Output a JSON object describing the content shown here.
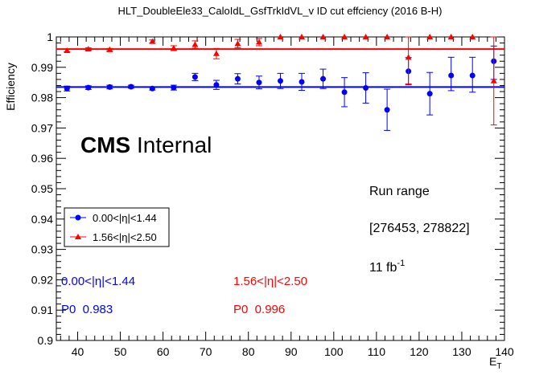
{
  "chart_data": {
    "type": "scatter",
    "title": "HLT_DoubleEle33_CaloIdL_GsfTrkIdVL_v ID cut effciency (2016 B-H)",
    "ylabel": "Efficiency",
    "xlabel": "E",
    "xlabel_sub": "T",
    "xlim": [
      35,
      140
    ],
    "ylim": [
      0.9,
      1.0
    ],
    "x_ticks": [
      "40",
      "50",
      "60",
      "70",
      "80",
      "90",
      "100",
      "110",
      "120",
      "130",
      "140"
    ],
    "y_ticks": [
      "0.9",
      "0.91",
      "0.92",
      "0.93",
      "0.94",
      "0.95",
      "0.96",
      "0.97",
      "0.98",
      "0.99",
      "1"
    ],
    "colors": {
      "blue": "#0000ff",
      "red": "#ff0000"
    },
    "series": [
      {
        "name": "0.00<|η|<1.44",
        "color": "#0000ff",
        "marker": "circle",
        "fit_p0": 0.9835,
        "x": [
          37.5,
          42.5,
          47.5,
          52.5,
          57.5,
          62.5,
          67.5,
          72.5,
          77.5,
          82.5,
          87.5,
          92.5,
          97.5,
          102.5,
          107.5,
          112.5,
          117.5,
          122.5,
          127.5,
          132.5,
          137.5
        ],
        "y": [
          0.983,
          0.9833,
          0.9835,
          0.9836,
          0.983,
          0.9833,
          0.9868,
          0.9842,
          0.9862,
          0.985,
          0.9855,
          0.9852,
          0.9862,
          0.9818,
          0.9832,
          0.976,
          0.9887,
          0.9813,
          0.9873,
          0.9873,
          0.992
        ],
        "err_lo": [
          0.0008,
          0.0006,
          0.0006,
          0.0005,
          0.0005,
          0.0008,
          0.0012,
          0.0015,
          0.0017,
          0.0021,
          0.0025,
          0.0028,
          0.0032,
          0.0048,
          0.005,
          0.0068,
          0.0045,
          0.007,
          0.005,
          0.0055,
          0.006
        ],
        "err_hi": [
          0.0008,
          0.0006,
          0.0006,
          0.0005,
          0.0005,
          0.0008,
          0.0012,
          0.0015,
          0.0017,
          0.0021,
          0.0025,
          0.0028,
          0.0032,
          0.0048,
          0.005,
          0.0068,
          0.0045,
          0.007,
          0.006,
          0.006,
          0.005
        ]
      },
      {
        "name": "1.56<|η|<2.50",
        "color": "#ff0000",
        "marker": "triangle",
        "fit_p0": 0.996,
        "x": [
          37.5,
          42.5,
          47.5,
          57.5,
          62.5,
          67.5,
          72.5,
          77.5,
          82.5,
          87.5,
          92.5,
          97.5,
          102.5,
          107.5,
          112.5,
          117.5,
          122.5,
          127.5,
          132.5,
          137.5
        ],
        "y": [
          0.9955,
          0.996,
          0.9958,
          0.9985,
          0.9963,
          0.9975,
          0.9945,
          0.9978,
          0.9983,
          1.0,
          1.0,
          1.0,
          1.0,
          1.0,
          1.0,
          0.9933,
          1.0,
          1.0,
          1.0,
          0.9855
        ],
        "err_lo": [
          0.0004,
          0.0004,
          0.0004,
          0.0005,
          0.0008,
          0.0012,
          0.0017,
          0.0014,
          0.0012,
          0,
          0,
          0,
          0,
          0,
          0,
          0.0088,
          0,
          0,
          0,
          0.0145
        ],
        "err_hi": [
          0.0004,
          0.0004,
          0.0004,
          0.0005,
          0.0008,
          0.0012,
          0.0017,
          0.0014,
          0.0012,
          0,
          0,
          0,
          0,
          0,
          0,
          0.0067,
          0,
          0,
          0,
          0.0145
        ]
      }
    ],
    "legend": {
      "placement": "left-middle",
      "entries": [
        "0.00<|η|<1.44",
        "1.56<|η|<2.50"
      ]
    },
    "annotations": {
      "cms_bold": "CMS",
      "cms_rest": " Internal",
      "run_range_title": "Run range",
      "run_range_value": "[276453, 278822]",
      "lumi_base": "11 fb",
      "lumi_exp": "-1",
      "blue_label": "0.00<|η|<1.44",
      "blue_fit": "P0  0.983",
      "red_label": "1.56<|η|<2.50",
      "red_fit": "P0  0.996"
    }
  }
}
